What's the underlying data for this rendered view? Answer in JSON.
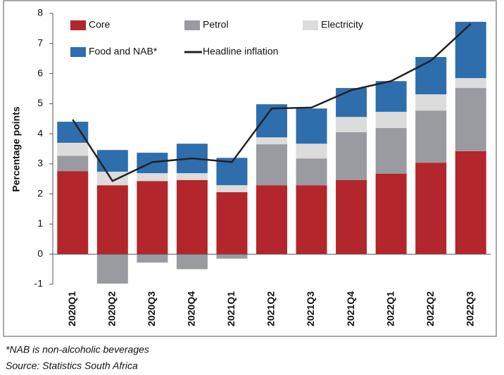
{
  "chart_data": {
    "type": "bar",
    "stacked": true,
    "y_label": "Percentage points",
    "categories": [
      "2020Q1",
      "2020Q2",
      "2020Q3",
      "2020Q4",
      "2021Q1",
      "2021Q2",
      "2021Q3",
      "2021Q4",
      "2022Q1",
      "2022Q2",
      "2022Q3"
    ],
    "series": [
      {
        "name": "Core",
        "color": "#b3262b",
        "values": [
          2.76,
          2.29,
          2.43,
          2.46,
          2.06,
          2.29,
          2.29,
          2.46,
          2.67,
          3.04,
          3.42
        ]
      },
      {
        "name": "Petrol",
        "color": "#9a9ba1",
        "values": [
          0.51,
          -0.98,
          -0.28,
          -0.5,
          -0.15,
          1.36,
          0.89,
          1.59,
          1.52,
          1.73,
          2.1
        ]
      },
      {
        "name": "Electricity",
        "color": "#dcdcdc",
        "values": [
          0.43,
          0.45,
          0.26,
          0.23,
          0.23,
          0.23,
          0.49,
          0.51,
          0.54,
          0.54,
          0.33
        ]
      },
      {
        "name": "Food and NAB*",
        "color": "#2f6ead",
        "values": [
          0.7,
          0.72,
          0.68,
          0.98,
          0.91,
          1.1,
          1.17,
          0.96,
          1.02,
          1.24,
          1.87
        ]
      },
      {
        "name": "Headline inflation",
        "type": "line",
        "color": "#222222",
        "values": [
          4.47,
          2.43,
          3.06,
          3.18,
          3.06,
          4.84,
          4.87,
          5.45,
          5.75,
          6.43,
          7.65
        ]
      }
    ],
    "ylim": [
      -1,
      8
    ],
    "yticks": [
      -1,
      0,
      1,
      2,
      3,
      4,
      5,
      6,
      7,
      8
    ],
    "legend": "top-left",
    "footnote": "*NAB is non-alcoholic beverages",
    "source": "Source: Statistics South Africa"
  }
}
